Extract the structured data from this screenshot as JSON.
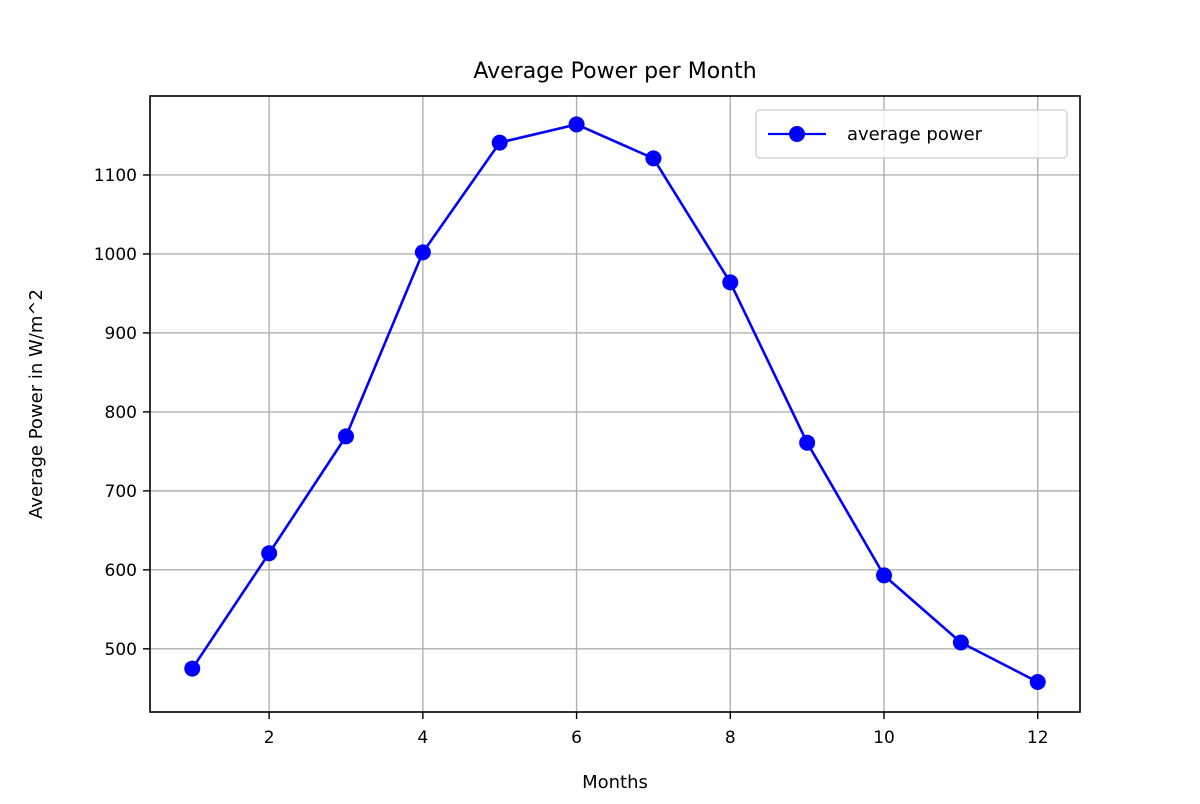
{
  "chart_data": {
    "type": "line",
    "title": "Average Power per Month",
    "xlabel": "Months",
    "ylabel": "Average Power in W/m^2",
    "xlim": [
      0.45,
      12.55
    ],
    "ylim": [
      420,
      1200
    ],
    "xticks": [
      2,
      4,
      6,
      8,
      10,
      12
    ],
    "yticks": [
      500,
      600,
      700,
      800,
      900,
      1000,
      1100
    ],
    "grid": true,
    "legend_position": "upper right",
    "x": [
      1,
      2,
      3,
      4,
      5,
      6,
      7,
      8,
      9,
      10,
      11,
      12
    ],
    "series": [
      {
        "name": "average power",
        "color": "#0000ff",
        "marker": "circle",
        "values": [
          475,
          621,
          769,
          1002,
          1141,
          1164,
          1121,
          964,
          761,
          593,
          508,
          458
        ]
      }
    ]
  }
}
